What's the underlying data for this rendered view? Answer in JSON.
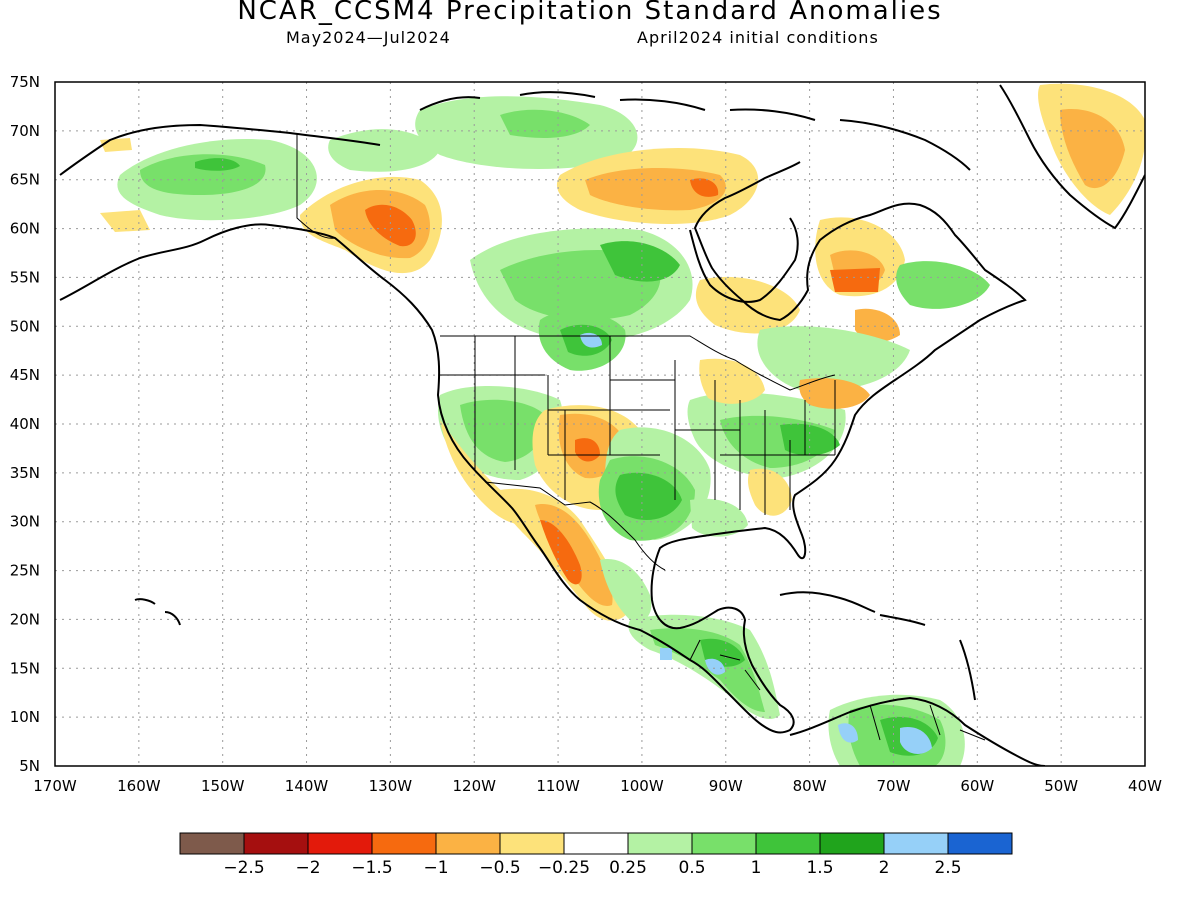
{
  "title": "NCAR_CCSM4 Precipitation Standard Anomalies",
  "subtitle_left": "May2024—Jul2024",
  "subtitle_right": "April2024 initial conditions",
  "axes": {
    "lat_labels": [
      "75N",
      "70N",
      "65N",
      "60N",
      "55N",
      "50N",
      "45N",
      "40N",
      "35N",
      "30N",
      "25N",
      "20N",
      "15N",
      "10N",
      "5N"
    ],
    "lon_labels": [
      "170W",
      "160W",
      "150W",
      "140W",
      "130W",
      "120W",
      "110W",
      "100W",
      "90W",
      "80W",
      "70W",
      "60W",
      "50W",
      "40W"
    ],
    "lat_range": [
      5,
      75
    ],
    "lon_range": [
      -170,
      -40
    ],
    "grid": "dotted"
  },
  "colorbar": {
    "colors": [
      "#7e5a4b",
      "#a50f0f",
      "#e31a0b",
      "#f66a0f",
      "#fbb244",
      "#fde27a",
      "#ffffff",
      "#b4f2a4",
      "#78e06a",
      "#3fc43a",
      "#20a41c",
      "#96d0f8",
      "#1a64d2"
    ],
    "labels": [
      "−2.5",
      "−2",
      "−1.5",
      "−1",
      "−0.5",
      "−0.25",
      "0.25",
      "0.5",
      "1",
      "1.5",
      "2",
      "2.5"
    ]
  },
  "colors": {
    "dry_light": "#fde27a",
    "dry_mod": "#fbb244",
    "dry_strong": "#f66a0f",
    "dry_severe": "#e31a0b",
    "wet_light": "#b4f2a4",
    "wet_mod": "#78e06a",
    "wet_strong": "#3fc43a",
    "wet_vstrong": "#20a41c",
    "wet_extreme": "#96d0f8"
  }
}
